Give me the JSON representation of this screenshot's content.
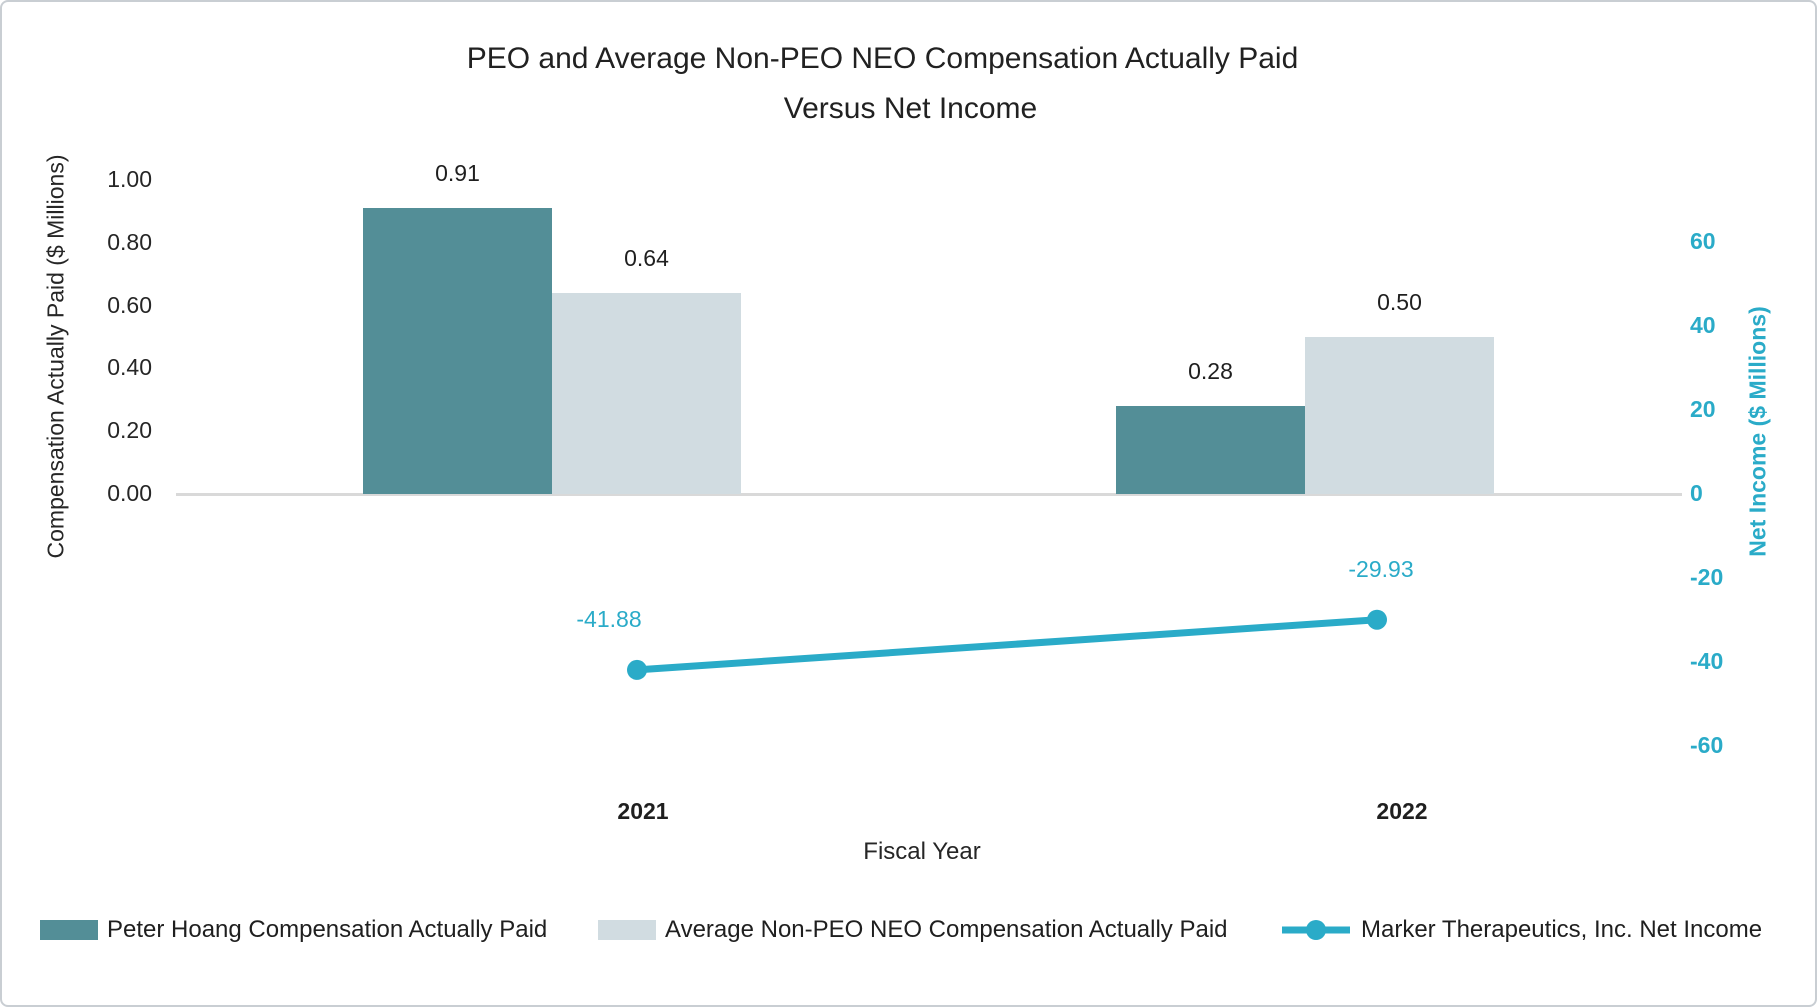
{
  "title": {
    "line1": "PEO and Average Non-PEO NEO Compensation Actually Paid",
    "line2": "Versus Net Income"
  },
  "chart_data": {
    "type": "combo-bar-line",
    "categories": [
      "2021",
      "2022"
    ],
    "series": [
      {
        "name": "Peter Hoang Compensation Actually Paid",
        "type": "bar",
        "axis": "left",
        "values": [
          0.91,
          0.28
        ],
        "labels": [
          "0.91",
          "0.28"
        ],
        "color": "#538e97"
      },
      {
        "name": "Average Non-PEO NEO Compensation Actually Paid",
        "type": "bar",
        "axis": "left",
        "values": [
          0.64,
          0.5
        ],
        "labels": [
          "0.64",
          "0.50"
        ],
        "color": "#d1dce1"
      },
      {
        "name": "Marker Therapeutics, Inc. Net Income",
        "type": "line",
        "axis": "right",
        "values": [
          -41.88,
          -29.93
        ],
        "labels": [
          "-41.88",
          "-29.93"
        ],
        "color": "#2aabc8"
      }
    ],
    "left_axis": {
      "title": "Compensation Actually Paid ($ Millions)",
      "ticks": [
        "1.00",
        "0.80",
        "0.60",
        "0.40",
        "0.20",
        "0.00"
      ],
      "range": [
        0.0,
        1.0
      ]
    },
    "right_axis": {
      "title": "Net Income ($ Millions)",
      "ticks": [
        "60",
        "40",
        "20",
        "0",
        "-20",
        "-40",
        "-60"
      ],
      "range": [
        -60,
        60
      ]
    },
    "x_axis": {
      "title": "Fiscal Year"
    },
    "legend_position": "bottom",
    "grid": "off"
  },
  "colors": {
    "peo_bar": "#538e97",
    "non_peo_bar": "#d1dce1",
    "net_income_line": "#2aabc8",
    "axis_line": "#d9d9d9",
    "text": "#1f1f1f"
  }
}
